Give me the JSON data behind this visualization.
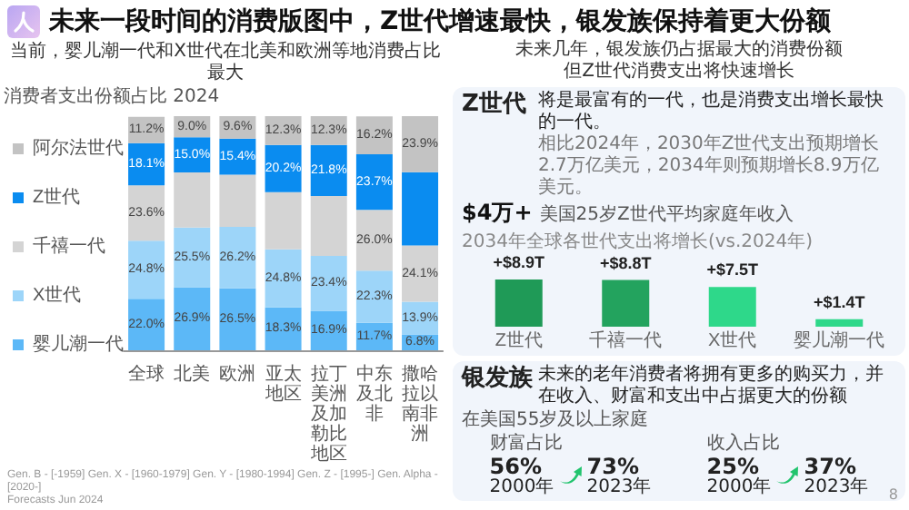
{
  "chart_data": [
    {
      "type": "bar",
      "title": "未来一段时间的消费版图中，Z世代增速最快，银发族保持着更大份额",
      "subtitle": "当前，婴儿潮一代和X世代在北美和欧洲等地消费占比最大",
      "ylabel": "消费者支出份额占比  2024",
      "stacked": true,
      "legend": "left",
      "categories": [
        "全球",
        "北美",
        "欧洲",
        "亚太地区",
        "拉丁美洲及加勒比地区",
        "中东及北非",
        "撒哈拉以南非洲"
      ],
      "series": [
        {
          "name": "婴儿潮一代",
          "color": "#5cb8f7",
          "values": [
            22.0,
            26.9,
            26.5,
            18.3,
            16.9,
            11.7,
            6.8
          ],
          "value_labels": [
            "22.0%",
            "26.9%",
            "26.5%",
            "18.3%",
            "16.9%",
            "11.7%",
            "6.8%"
          ]
        },
        {
          "name": "X世代",
          "color": "#9dd5f9",
          "values": [
            24.8,
            25.5,
            26.2,
            24.8,
            23.4,
            22.3,
            13.9
          ],
          "value_labels": [
            "24.8%",
            "25.5%",
            "26.2%",
            "24.8%",
            "23.4%",
            "22.3%",
            "13.9%"
          ]
        },
        {
          "name": "千禧一代",
          "color": "#d4d4d4",
          "values": [
            23.6,
            23.6,
            22.3,
            24.4,
            25.6,
            26.0,
            24.1
          ],
          "value_labels": [
            "23.6%",
            null,
            null,
            null,
            null,
            "26.0%",
            "24.1%"
          ]
        },
        {
          "name": "Z世代",
          "color": "#0a8cf0",
          "values": [
            18.1,
            15.0,
            15.4,
            20.2,
            21.8,
            23.7,
            31.3
          ],
          "value_labels": [
            "18.1%",
            "15.0%",
            "15.4%",
            "20.2%",
            "21.8%",
            "23.7%",
            null
          ]
        },
        {
          "name": "阿尔法世代",
          "color": "#c3c3c3",
          "values": [
            11.2,
            9.0,
            9.6,
            12.3,
            12.3,
            16.2,
            23.9
          ],
          "value_labels": [
            "11.2%",
            "9.0%",
            "9.6%",
            "12.3%",
            "12.3%",
            "16.2%",
            "23.9%"
          ]
        }
      ],
      "annotations": [
        "Gen. B - [-1959] Gen. X - [1960-1979] Gen. Y - [1980-1994] Gen. Z - [1995-] Gen. Alpha - [2020-]",
        "Forecasts Jun 2024",
        "8"
      ]
    },
    {
      "type": "bar",
      "title": "2034年全球各世代支出将增长(vs.2024年)",
      "categories": [
        "Z世代",
        "千禧一代",
        "X世代",
        "婴儿潮一代"
      ],
      "values": [
        8.9,
        8.8,
        7.5,
        1.4
      ],
      "colors": [
        "#1f9a57",
        "#23a35e",
        "#2ed88a",
        "#2ed88a"
      ],
      "value_labels": [
        "+$8.9T",
        "+$8.8T",
        "+$7.5T",
        "+$1.4T"
      ]
    },
    {
      "type": "other",
      "title": "未来几年，银发族仍占据最大的消费份额但Z世代消费支出将快速增长",
      "annotations": [
        "Z世代",
        "将是最富有的一代，也是消费支出增长最快的一代。",
        "相比2024年，2030年Z世代支出预期增长2.7万亿美元，2034年则预期增长8.9万亿美元。",
        "$4万+",
        "美国25岁Z世代平均家庭年收入"
      ]
    },
    {
      "type": "other",
      "title": "银发族",
      "subtitle": "未来的老年消费者将拥有更多的购买力，并在收入、财富和支出中占据更大的份额",
      "annotations": [
        "在美国55岁及以上家庭",
        "财富占比",
        "56%",
        "2000年",
        "73%",
        "2023年",
        "收入占比",
        "25%",
        "2000年",
        "37%",
        "2023年"
      ]
    }
  ]
}
